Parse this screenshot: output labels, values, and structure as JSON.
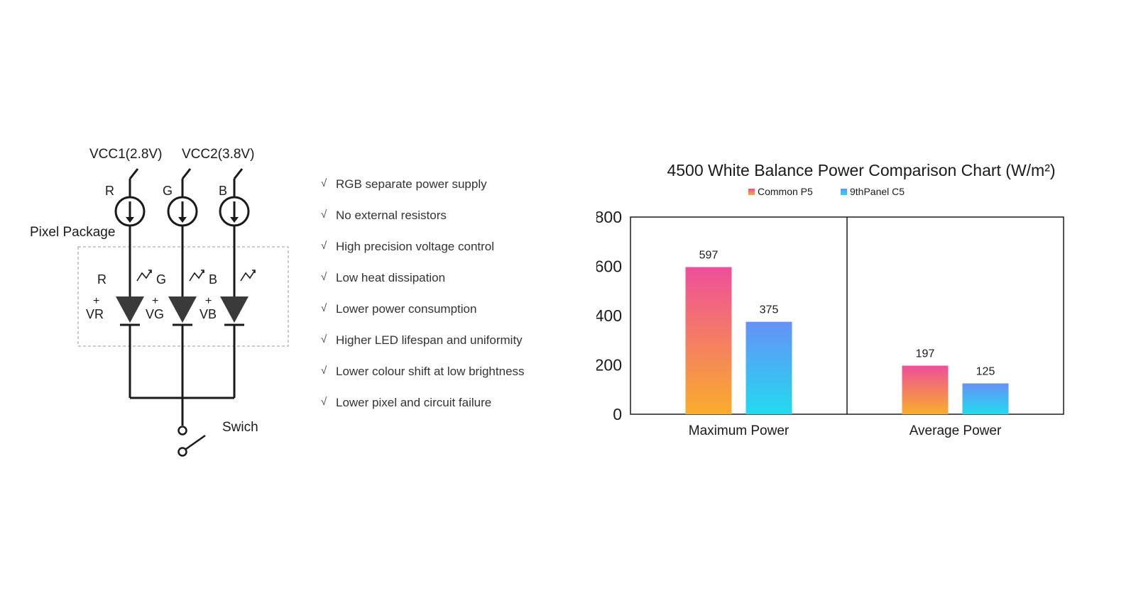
{
  "circuit": {
    "vcc1": "VCC1(2.8V)",
    "vcc2": "VCC2(3.8V)",
    "channels": [
      "R",
      "G",
      "B"
    ],
    "package_label": "Pixel Package",
    "led_labels": [
      "R",
      "G",
      "B"
    ],
    "plus_sign": "+",
    "voltage_labels": [
      "VR",
      "VG",
      "VB"
    ],
    "switch_label": "Swich"
  },
  "features": {
    "check_mark": "√",
    "items": [
      "RGB separate power supply",
      "No external resistors",
      "High precision voltage control",
      "Low heat dissipation",
      "Lower power consumption",
      "Higher LED lifespan and uniformity",
      "Lower colour shift at low brightness",
      "Lower pixel and circuit failure"
    ]
  },
  "chart_data": {
    "type": "bar",
    "title": "4500 White Balance Power Comparison Chart (W/m²)",
    "categories": [
      "Maximum Power",
      "Average Power"
    ],
    "series": [
      {
        "name": "Common P5",
        "values": [
          597,
          197
        ],
        "gradient": [
          "#ee4f9a",
          "#f9ad2c"
        ]
      },
      {
        "name": "9thPanel C5",
        "values": [
          375,
          125
        ],
        "gradient": [
          "#6691f7",
          "#22dbef"
        ]
      }
    ],
    "ylim": [
      0,
      800
    ],
    "yticks": [
      0,
      200,
      400,
      600,
      800
    ],
    "legend_position": "top-center",
    "grid": false
  }
}
